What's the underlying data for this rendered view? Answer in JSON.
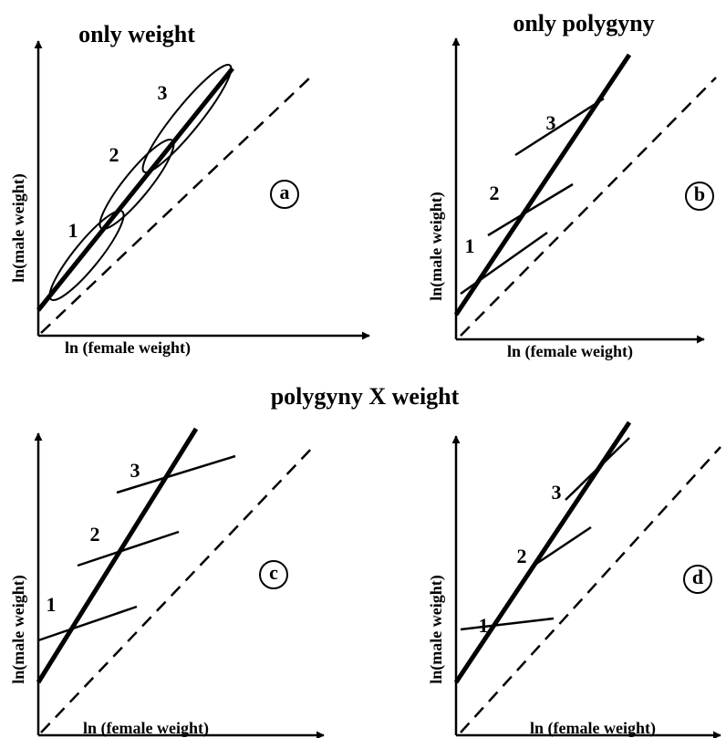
{
  "titles": [
    "only weight",
    "only polygyny",
    "polygyny X weight"
  ],
  "panels": [
    {
      "letter": "a",
      "xlabel": "ln (female weight)",
      "ylabel": "ln(male weight)",
      "labels": [
        "1",
        "2",
        "3"
      ]
    },
    {
      "letter": "b",
      "xlabel": "ln (female weight)",
      "ylabel": "ln(male weight)",
      "labels": [
        "1",
        "2",
        "3"
      ]
    },
    {
      "letter": "c",
      "xlabel": "ln (female weight)",
      "ylabel": "ln(male weight)",
      "labels": [
        "1",
        "2",
        "3"
      ]
    },
    {
      "letter": "d",
      "xlabel": "ln (female weight)",
      "ylabel": "ln(male weight)",
      "labels": [
        "1",
        "2",
        "3"
      ]
    }
  ]
}
